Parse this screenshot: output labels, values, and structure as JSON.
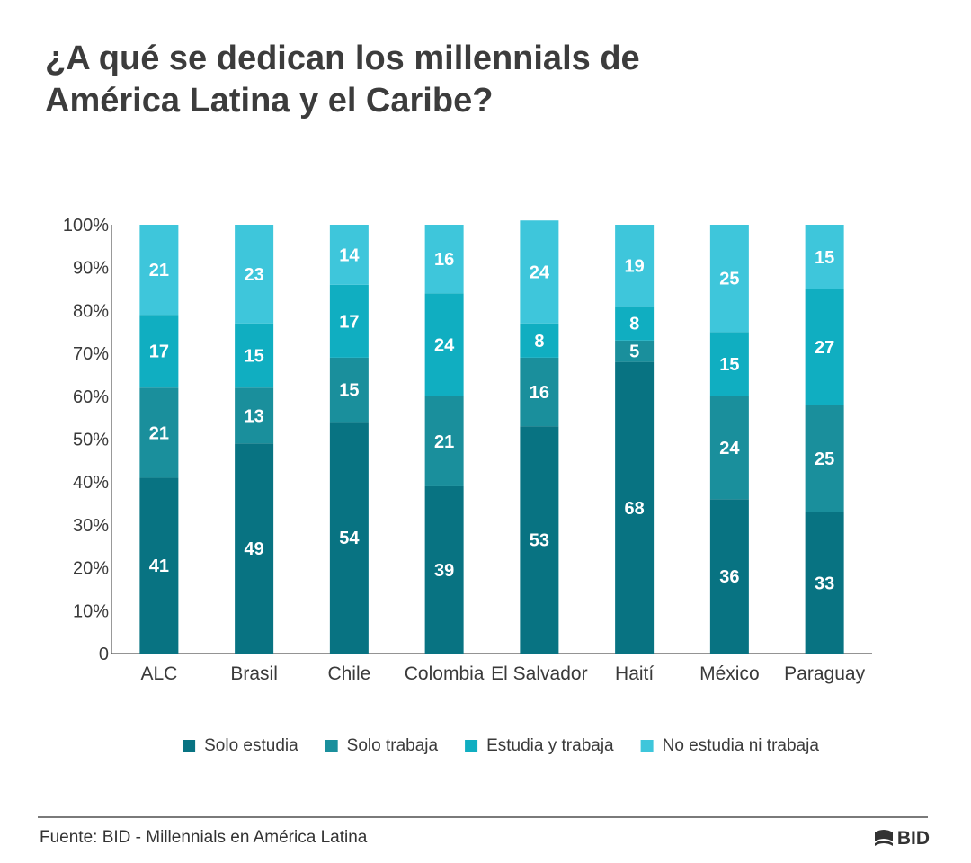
{
  "title_line1": "¿A qué se dedican los millennials de",
  "title_line2": "América Latina y el Caribe?",
  "chart_data": {
    "type": "bar",
    "stacked": true,
    "categories": [
      "ALC",
      "Brasil",
      "Chile",
      "Colombia",
      "El Salvador",
      "Haití",
      "México",
      "Paraguay"
    ],
    "series": [
      {
        "name": "Solo estudia",
        "color": "#087382",
        "values": [
          41,
          49,
          54,
          39,
          53,
          68,
          36,
          33
        ]
      },
      {
        "name": "Solo trabaja",
        "color": "#1a8f9c",
        "values": [
          21,
          13,
          15,
          21,
          16,
          5,
          24,
          25
        ]
      },
      {
        "name": "Estudia y trabaja",
        "color": "#10aec1",
        "values": [
          17,
          15,
          17,
          24,
          8,
          8,
          15,
          27
        ]
      },
      {
        "name": "No estudia ni trabaja",
        "color": "#3ec6db",
        "values": [
          21,
          23,
          14,
          16,
          24,
          19,
          25,
          15
        ]
      }
    ],
    "yticks": [
      "0",
      "10%",
      "20%",
      "30%",
      "40%",
      "50%",
      "60%",
      "70%",
      "80%",
      "90%",
      "100%"
    ],
    "ylim": [
      0,
      100
    ],
    "legend_position": "bottom"
  },
  "source": "Fuente: BID - Millennials en América Latina",
  "logo_text": "BID"
}
